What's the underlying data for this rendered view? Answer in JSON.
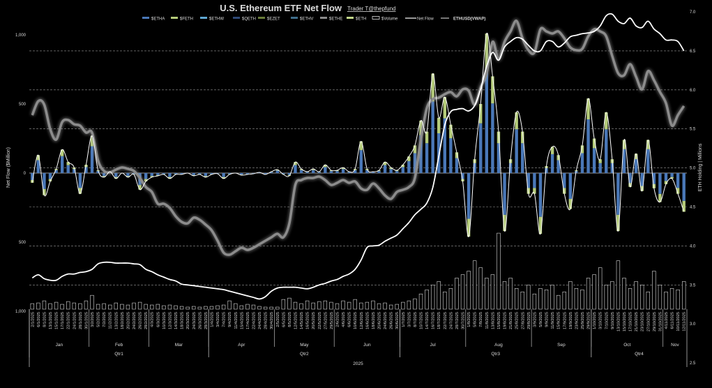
{
  "chart_data": {
    "type": "bar",
    "title": "U.S. Ethereum ETF Net Flow",
    "subtitle": "Trader T@thepfund",
    "ylabel": "Net Flow ($Million)",
    "y2label": "ETH Holding | Millions",
    "ylim": [
      -1000,
      1000
    ],
    "y2lim": [
      2.5,
      7.0
    ],
    "left_ticks": [
      {
        "label": "1,000",
        "value": 1000,
        "color": "#dddddd"
      },
      {
        "label": "500",
        "value": 500,
        "color": "#dddddd"
      },
      {
        "label": "0",
        "value": 0,
        "color": "#dddddd"
      },
      {
        "label": "500",
        "value": -500,
        "color": "#e03030"
      },
      {
        "label": "1,000",
        "value": -1000,
        "color": "#e03030"
      }
    ],
    "right_ticks": [
      "7.0",
      "6.5",
      "6.0",
      "5.5",
      "5.0",
      "4.5",
      "4.0",
      "3.5",
      "3.0",
      "2.5"
    ],
    "grid": true,
    "legend": {
      "placement": "top",
      "items": [
        {
          "label": "$ETHA",
          "color": "#4a78b8",
          "kind": "bar"
        },
        {
          "label": "$FETH",
          "color": "#b5cc7a",
          "kind": "bar"
        },
        {
          "label": "$ETHW",
          "color": "#5fa8d3",
          "kind": "bar"
        },
        {
          "label": "$QETH",
          "color": "#2f4a78",
          "kind": "bar"
        },
        {
          "label": "$EZET",
          "color": "#6a7d3a",
          "kind": "bar"
        },
        {
          "label": "$ETHV",
          "color": "#3f6e8c",
          "kind": "bar"
        },
        {
          "label": "$ETHE",
          "color": "#8a8a8a",
          "kind": "bar"
        },
        {
          "label": "$ETH",
          "color": "#c3d98a",
          "kind": "bar"
        },
        {
          "label": "$Volume",
          "color": "#ffffff",
          "kind": "outline"
        },
        {
          "label": "Net Flow",
          "color": "#ffffff",
          "kind": "line"
        },
        {
          "label": "ETHUSD(VWAP)",
          "color": "#777777",
          "kind": "thickline"
        }
      ]
    },
    "colors": {
      "etha": "#4a78b8",
      "feth": "#b5cc7a",
      "holdings": "#ffffff",
      "vwap": "#8c8c8c",
      "grid": "#9a9a9a",
      "negative_tick": "#e03030"
    },
    "etha_share": 0.72,
    "dates": [
      "2/1/2025",
      "6/1/2025",
      "8/1/2025",
      "13/1/2025",
      "15/1/2025",
      "17/1/2025",
      "22/1/2025",
      "24/1/2025",
      "28/1/2025",
      "30/1/2025",
      "3/2/2025",
      "5/2/2025",
      "7/2/2025",
      "11/2/2025",
      "13/2/2025",
      "18/2/2025",
      "20/2/2025",
      "24/2/2025",
      "26/2/2025",
      "28/2/2025",
      "4/3/2025",
      "6/3/2025",
      "10/3/2025",
      "12/3/2025",
      "14/3/2025",
      "18/3/2025",
      "20/3/2025",
      "24/3/2025",
      "26/3/2025",
      "28/3/2025",
      "1/4/2025",
      "3/4/2025",
      "7/4/2025",
      "9/4/2025",
      "11/4/2025",
      "15/4/2025",
      "17/4/2025",
      "22/4/2025",
      "24/4/2025",
      "28/4/2025",
      "30/4/2025",
      "2/5/2025",
      "6/5/2025",
      "8/5/2025",
      "12/5/2025",
      "14/5/2025",
      "16/5/2025",
      "20/5/2025",
      "22/5/2025",
      "27/5/2025",
      "29/5/2025",
      "2/6/2025",
      "4/6/2025",
      "6/6/2025",
      "10/6/2025",
      "12/6/2025",
      "16/6/2025",
      "18/6/2025",
      "20/6/2025",
      "24/6/2025",
      "26/6/2025",
      "30/6/2025",
      "1/7/2025",
      "3/7/2025",
      "8/7/2025",
      "10/7/2025",
      "14/7/2025",
      "16/7/2025",
      "18/7/2025",
      "22/7/2025",
      "24/7/2025",
      "28/7/2025",
      "30/7/2025",
      "1/8/2025",
      "5/8/2025",
      "7/8/2025",
      "11/8/2025",
      "13/8/2025",
      "15/8/2025",
      "19/8/2025",
      "21/8/2025",
      "25/8/2025",
      "27/8/2025",
      "29/8/2025",
      "3/9/2025",
      "5/9/2025",
      "9/9/2025",
      "11/9/2025",
      "15/9/2025",
      "17/9/2025",
      "19/9/2025",
      "23/9/2025",
      "25/9/2025",
      "29/9/2025",
      "1/10/2025",
      "3/10/2025",
      "7/10/2025",
      "9/10/2025",
      "13/10/2025",
      "15/10/2025",
      "17/10/2025",
      "21/10/2025",
      "23/10/2025",
      "27/10/2025",
      "29/10/2025",
      "31/10/2025",
      "4/11/2025",
      "6/11/2025",
      "10/11/2025",
      "12/11/2025"
    ],
    "months": [
      {
        "label": "Jan",
        "start": 0,
        "end": 9
      },
      {
        "label": "Feb",
        "start": 10,
        "end": 19
      },
      {
        "label": "Mar",
        "start": 20,
        "end": 29
      },
      {
        "label": "Apr",
        "start": 30,
        "end": 40
      },
      {
        "label": "May",
        "start": 41,
        "end": 50
      },
      {
        "label": "Jun",
        "start": 51,
        "end": 61
      },
      {
        "label": "Jul",
        "start": 62,
        "end": 72
      },
      {
        "label": "Aug",
        "start": 73,
        "end": 83
      },
      {
        "label": "Sep",
        "start": 84,
        "end": 93
      },
      {
        "label": "Oct",
        "start": 94,
        "end": 105
      },
      {
        "label": "Nov",
        "start": 106,
        "end": 109
      }
    ],
    "quarters": [
      {
        "label": "Qtr1",
        "start": 0,
        "end": 29
      },
      {
        "label": "Qtr2",
        "start": 30,
        "end": 61
      },
      {
        "label": "Qtr3",
        "start": 62,
        "end": 93
      },
      {
        "label": "Qtr4",
        "start": 94,
        "end": 109
      }
    ],
    "year": "2025",
    "net_flow": [
      -70,
      130,
      -160,
      -60,
      30,
      170,
      80,
      40,
      -150,
      60,
      270,
      20,
      -30,
      10,
      -40,
      0,
      -30,
      -10,
      -120,
      -60,
      -30,
      -20,
      -10,
      -40,
      -10,
      -10,
      0,
      -20,
      -10,
      -30,
      -10,
      -5,
      -40,
      -10,
      0,
      -15,
      -10,
      -5,
      5,
      -10,
      10,
      25,
      -10,
      -20,
      80,
      30,
      10,
      30,
      10,
      60,
      20,
      20,
      40,
      10,
      30,
      230,
      30,
      10,
      20,
      80,
      40,
      20,
      60,
      120,
      200,
      380,
      300,
      720,
      400,
      550,
      350,
      150,
      -60,
      -460,
      100,
      500,
      1010,
      700,
      300,
      -420,
      100,
      440,
      300,
      -150,
      -150,
      -440,
      50,
      190,
      130,
      -150,
      -260,
      20,
      200,
      540,
      250,
      100,
      440,
      100,
      -420,
      240,
      -100,
      140,
      -130,
      240,
      -110,
      -210,
      -80,
      -40,
      -150,
      -280
    ],
    "eth_holdings_m": [
      3.59,
      3.63,
      3.58,
      3.56,
      3.56,
      3.61,
      3.64,
      3.64,
      3.66,
      3.67,
      3.7,
      3.77,
      3.79,
      3.79,
      3.78,
      3.78,
      3.78,
      3.77,
      3.76,
      3.7,
      3.67,
      3.63,
      3.6,
      3.57,
      3.55,
      3.51,
      3.5,
      3.49,
      3.48,
      3.47,
      3.46,
      3.45,
      3.44,
      3.42,
      3.4,
      3.38,
      3.36,
      3.34,
      3.32,
      3.35,
      3.42,
      3.46,
      3.47,
      3.47,
      3.47,
      3.46,
      3.45,
      3.47,
      3.5,
      3.52,
      3.55,
      3.57,
      3.61,
      3.64,
      3.7,
      3.82,
      3.98,
      4.0,
      4.01,
      4.06,
      4.1,
      4.14,
      4.22,
      4.3,
      4.4,
      4.47,
      4.55,
      4.75,
      5.15,
      5.55,
      5.72,
      5.75,
      5.76,
      5.73,
      5.8,
      6.01,
      6.3,
      6.48,
      6.38,
      6.55,
      6.62,
      6.67,
      6.65,
      6.57,
      6.5,
      6.5,
      6.62,
      6.62,
      6.55,
      6.6,
      6.68,
      6.7,
      6.72,
      6.73,
      6.75,
      6.82,
      6.95,
      6.97,
      6.88,
      6.85,
      6.92,
      6.82,
      6.8,
      6.88,
      6.78,
      6.72,
      6.64,
      6.64,
      6.62,
      6.5
    ],
    "ethusd_vwap": [
      3244,
      3468,
      3412,
      3020,
      2852,
      3132,
      3166,
      3098,
      3076,
      2964,
      2964,
      2516,
      2348,
      2326,
      2370,
      2404,
      2382,
      2348,
      2236,
      2090,
      2012,
      1822,
      1822,
      1754,
      1620,
      1530,
      1508,
      1598,
      1564,
      1486,
      1396,
      1228,
      1038,
      1004,
      1060,
      1116,
      1082,
      1116,
      1172,
      1228,
      1284,
      1340,
      1284,
      1508,
      2124,
      2202,
      2236,
      2236,
      2258,
      2202,
      2124,
      2158,
      2202,
      2158,
      2180,
      2068,
      2046,
      2146,
      2068,
      1956,
      1900,
      2012,
      2046,
      2090,
      2236,
      2852,
      3356,
      3502,
      3524,
      3580,
      3614,
      3546,
      3658,
      3636,
      3412,
      3692,
      3916,
      4420,
      4140,
      4420,
      4588,
      4756,
      4476,
      4286,
      4252,
      4622,
      4588,
      4554,
      4588,
      4476,
      4330,
      4286,
      4308,
      4510,
      4622,
      4588,
      4510,
      4196,
      3916,
      3884,
      4062,
      3860,
      3658,
      3950,
      3804,
      3614,
      3436,
      3076,
      3244,
      3390
    ],
    "volume_musd": [
      400,
      450,
      600,
      400,
      500,
      350,
      550,
      450,
      400,
      600,
      1000,
      350,
      400,
      300,
      450,
      350,
      300,
      450,
      500,
      350,
      300,
      350,
      250,
      300,
      250,
      200,
      150,
      200,
      150,
      200,
      200,
      250,
      300,
      600,
      400,
      250,
      350,
      300,
      200,
      150,
      150,
      150,
      700,
      800,
      500,
      400,
      600,
      450,
      550,
      600,
      500,
      400,
      600,
      500,
      700,
      450,
      500,
      600,
      400,
      450,
      300,
      350,
      500,
      600,
      750,
      1100,
      1400,
      1750,
      2000,
      1250,
      1500,
      2250,
      2500,
      2750,
      3500,
      3000,
      2250,
      2500,
      5500,
      2000,
      2250,
      1500,
      1250,
      1750,
      1100,
      1500,
      1400,
      1750,
      1000,
      1250,
      2000,
      1500,
      1400,
      2250,
      2500,
      3000,
      1750,
      2000,
      3500,
      2250,
      1500,
      2000,
      1750,
      1250,
      2750,
      1750,
      1250,
      1500,
      1400,
      2000
    ]
  }
}
